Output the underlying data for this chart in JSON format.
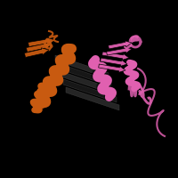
{
  "background_color": "#000000",
  "fig_width": 2.0,
  "fig_height": 2.0,
  "dpi": 100,
  "c1": "#C85A10",
  "c2": "#E060B0",
  "c_dark": "#1A1A1A",
  "c_gray": "#555555"
}
